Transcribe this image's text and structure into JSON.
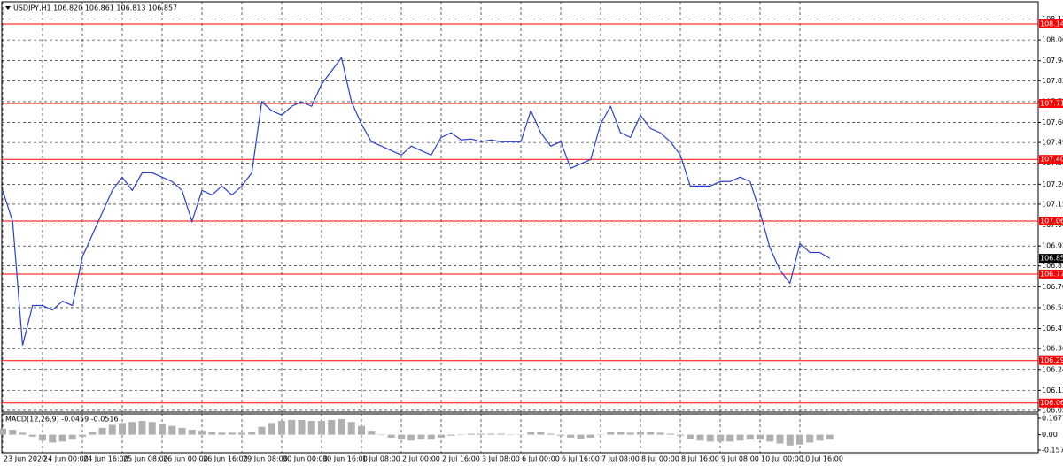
{
  "chart_data": [
    {
      "type": "line",
      "title": "USDJPY,H1  106.820 106.861 106.813 106.857",
      "categories": [
        "23 Jun 2020",
        null,
        null,
        null,
        "24 Jun 00:00",
        null,
        null,
        null,
        "24 Jun 16:00",
        null,
        null,
        null,
        "25 Jun 08:00",
        null,
        null,
        null,
        "26 Jun 00:00",
        null,
        null,
        null,
        "26 Jun 16:00",
        null,
        null,
        null,
        "29 Jun 08:00",
        null,
        null,
        null,
        "30 Jun 00:00",
        null,
        null,
        null,
        "30 Jun 16:00",
        null,
        null,
        null,
        "1 Jul 08:00",
        null,
        null,
        null,
        "2 Jul 00:00",
        null,
        null,
        null,
        "2 Jul 16:00",
        null,
        null,
        null,
        "3 Jul 08:00",
        null,
        null,
        null,
        "6 Jul 00:00",
        null,
        null,
        null,
        "6 Jul 16:00",
        null,
        null,
        null,
        "7 Jul 08:00",
        null,
        null,
        null,
        "8 Jul 00:00",
        null,
        null,
        null,
        "8 Jul 16:00",
        null,
        null,
        null,
        "9 Jul 08:00",
        null,
        null,
        null,
        "10 Jul 00:00",
        null,
        null,
        null,
        "10 Jul 16:00",
        null,
        null,
        null
      ],
      "series": [
        {
          "name": "USDJPY",
          "color": "#2a3fd0",
          "values": [
            107.231,
            107.06,
            106.377,
            106.597,
            106.597,
            106.572,
            106.621,
            106.597,
            106.865,
            106.987,
            107.109,
            107.231,
            107.304,
            107.231,
            107.328,
            107.328,
            107.304,
            107.28,
            107.231,
            107.06,
            107.231,
            107.206,
            107.255,
            107.206,
            107.255,
            107.328,
            107.719,
            107.67,
            107.645,
            107.694,
            107.719,
            107.694,
            107.816,
            107.889,
            107.962,
            107.719,
            107.597,
            107.499,
            107.475,
            107.45,
            107.426,
            107.475,
            107.45,
            107.426,
            107.523,
            107.548,
            107.509,
            107.514,
            107.499,
            107.509,
            107.499,
            107.499,
            107.499,
            107.67,
            107.548,
            107.475,
            107.499,
            107.353,
            107.377,
            107.401,
            107.597,
            107.694,
            107.548,
            107.523,
            107.645,
            107.572,
            107.548,
            107.499,
            107.426,
            107.255,
            107.255,
            107.255,
            107.28,
            107.28,
            107.304,
            107.28,
            107.109,
            106.914,
            106.792,
            106.719,
            106.938,
            106.889,
            106.889,
            106.857
          ]
        }
      ],
      "levels": [
        108.148,
        {
          "value": 107.71,
          "label": "107.710"
        },
        107.402,
        107.062,
        {
          "value": 106.77,
          "label": "106.770"
        },
        106.294,
        {
          "value": 106.06,
          "label": "106.060"
        }
      ],
      "level_color": "#ff0000",
      "current": 106.857,
      "ylim": [
        106.01,
        108.27
      ],
      "yticks": [
        108.175,
        {
          "value": 108.06,
          "label": "108.060"
        },
        107.945,
        107.835,
        {
          "value": 107.72,
          "label": "107.720"
        },
        107.605,
        107.495,
        {
          "value": 107.38,
          "label": "107.380"
        },
        107.265,
        107.155,
        {
          "value": 107.04,
          "label": "107.040"
        },
        106.925,
        106.815,
        {
          "value": 106.7,
          "label": "106.700"
        },
        106.585,
        {
          "value": 106.47,
          "label": "106.470"
        },
        {
          "value": 106.36,
          "label": "106.360"
        },
        106.245,
        {
          "value": 106.13,
          "label": "106.130"
        },
        {
          "value": 106.02,
          "label": "106.020"
        }
      ],
      "grid": true
    },
    {
      "type": "bar",
      "title": "MACD(12,26,9) -0.0459 -0.0516",
      "color": "#b0b0b0",
      "values": [
        0.06,
        0.05,
        0.02,
        -0.02,
        -0.06,
        -0.08,
        -0.07,
        -0.05,
        -0.02,
        0.03,
        0.07,
        0.1,
        0.12,
        0.13,
        0.14,
        0.13,
        0.11,
        0.09,
        0.07,
        0.05,
        0.04,
        0.03,
        0.02,
        0.02,
        0.02,
        0.03,
        0.08,
        0.12,
        0.14,
        0.15,
        0.15,
        0.14,
        0.14,
        0.15,
        0.16,
        0.13,
        0.09,
        0.04,
        0,
        -0.03,
        -0.05,
        -0.06,
        -0.05,
        -0.05,
        -0.03,
        -0.01,
        0,
        0.01,
        0.01,
        0.01,
        0.01,
        0,
        0,
        0.03,
        0.03,
        0.01,
        -0.01,
        -0.03,
        -0.04,
        -0.03,
        0,
        0.03,
        0.03,
        0.02,
        0.03,
        0.03,
        0.02,
        0.01,
        -0.01,
        -0.04,
        -0.06,
        -0.07,
        -0.07,
        -0.07,
        -0.06,
        -0.05,
        -0.05,
        -0.07,
        -0.09,
        -0.11,
        -0.1,
        -0.08,
        -0.06,
        -0.05
      ],
      "ylim": [
        -0.184,
        0.213
      ],
      "yticks": [
        0.1677,
        {
          "value": 0,
          "label": "0.00"
        },
        -0.1572
      ]
    }
  ]
}
